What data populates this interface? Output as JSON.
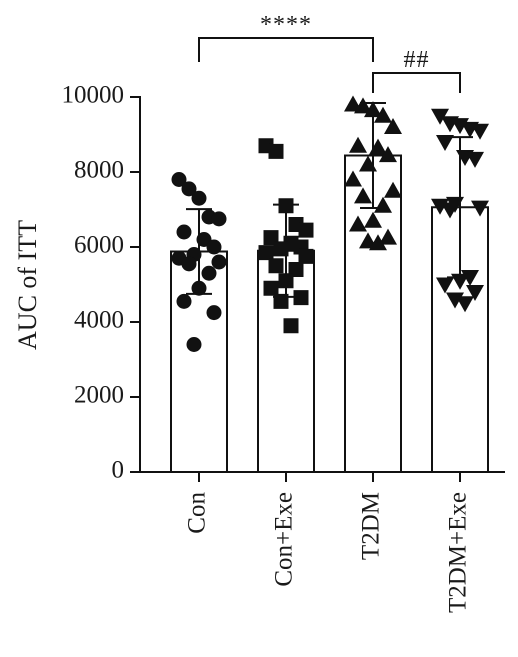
{
  "chart_data": {
    "type": "bar",
    "ylabel": "AUC of ITT",
    "xlabel": "",
    "ylim": [
      0,
      10000
    ],
    "yticks": [
      0,
      2000,
      4000,
      6000,
      8000,
      10000
    ],
    "tick_labels": [
      "0",
      "2000",
      "4000",
      "6000",
      "8000",
      "10000"
    ],
    "grid": false,
    "categories": [
      "Con",
      "Con+Exe",
      "T2DM",
      "T2DM+Exe"
    ],
    "values": [
      5880,
      5900,
      8440,
      7060
    ],
    "error_sd": [
      1130,
      1230,
      1400,
      1870
    ],
    "bar_color": "#ffffff",
    "marker_color": "#111111",
    "markers": [
      "circle",
      "square",
      "triangle-up",
      "triangle-down"
    ],
    "points": [
      [
        7800,
        7550,
        7300,
        6800,
        6750,
        6400,
        6200,
        6000,
        5800,
        5700,
        5600,
        5550,
        5300,
        4900,
        4550,
        4250,
        3400
      ],
      [
        8700,
        8550,
        7100,
        6600,
        6450,
        6250,
        6100,
        6000,
        5950,
        5850,
        5750,
        5500,
        5400,
        5100,
        4900,
        4650,
        4550,
        3900
      ],
      [
        9800,
        9750,
        9650,
        9500,
        9200,
        8700,
        8650,
        8450,
        8200,
        7800,
        7500,
        7350,
        7100,
        6700,
        6600,
        6250,
        6150,
        6100
      ],
      [
        9500,
        9300,
        9250,
        9150,
        9100,
        8800,
        8400,
        8350,
        7150,
        7100,
        7050,
        7000,
        5200,
        5100,
        5000,
        4800,
        4600,
        4500
      ]
    ],
    "significance": [
      {
        "from": 0,
        "to": 2,
        "label": "****"
      },
      {
        "from": 2,
        "to": 3,
        "label": "##"
      }
    ]
  }
}
